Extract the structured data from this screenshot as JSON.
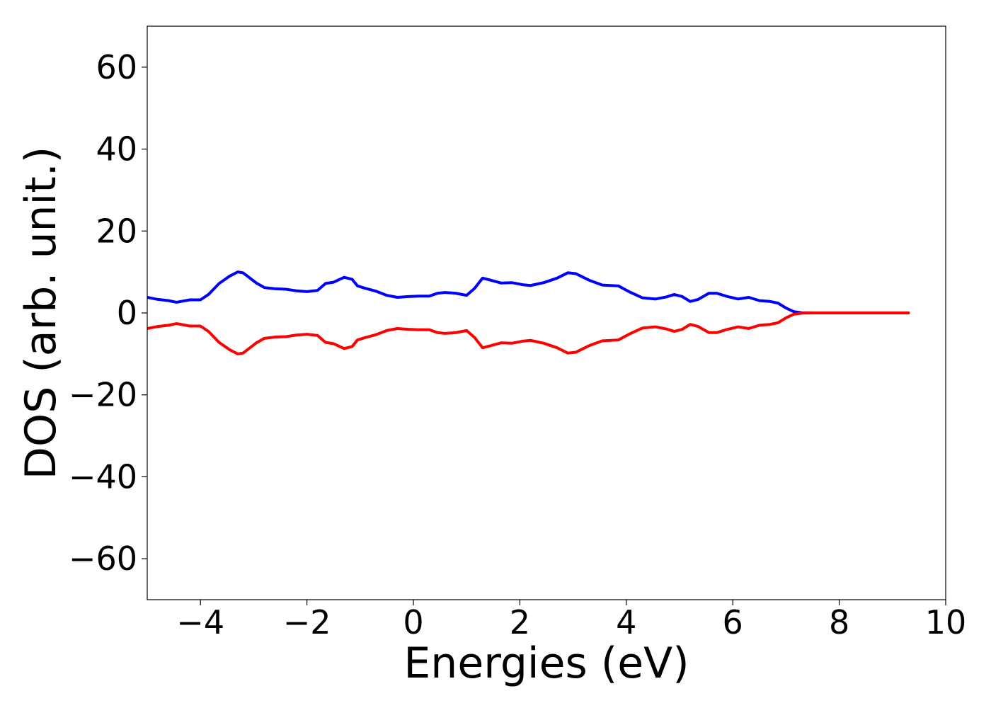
{
  "chart_data": {
    "type": "line",
    "xlabel": "Energies (eV)",
    "ylabel": "DOS (arb. unit.)",
    "xlim": [
      -5,
      10
    ],
    "ylim": [
      -70,
      70
    ],
    "xticks": [
      -4,
      -2,
      0,
      2,
      4,
      6,
      8,
      10
    ],
    "yticks": [
      -60,
      -40,
      -20,
      0,
      20,
      40,
      60
    ],
    "xtick_labels": [
      "−4",
      "−2",
      "0",
      "2",
      "4",
      "6",
      "8",
      "10"
    ],
    "ytick_labels": [
      "−60",
      "−40",
      "−20",
      "0",
      "20",
      "40",
      "60"
    ],
    "grid": false,
    "legend": "none",
    "series": [
      {
        "color": "#0000ff",
        "x": [
          -5.0,
          -4.8,
          -4.6,
          -4.45,
          -4.2,
          -4.0,
          -3.85,
          -3.65,
          -3.45,
          -3.3,
          -3.2,
          -3.1,
          -2.95,
          -2.8,
          -2.6,
          -2.4,
          -2.2,
          -2.0,
          -1.8,
          -1.65,
          -1.5,
          -1.3,
          -1.15,
          -1.05,
          -0.9,
          -0.7,
          -0.5,
          -0.3,
          -0.1,
          0.1,
          0.3,
          0.45,
          0.6,
          0.8,
          1.0,
          1.15,
          1.3,
          1.45,
          1.65,
          1.85,
          2.05,
          2.2,
          2.45,
          2.7,
          2.9,
          3.05,
          3.3,
          3.55,
          3.85,
          4.05,
          4.3,
          4.55,
          4.75,
          4.9,
          5.05,
          5.2,
          5.35,
          5.55,
          5.7,
          5.9,
          6.1,
          6.3,
          6.5,
          6.7,
          6.85,
          7.0,
          7.15,
          7.3,
          7.5,
          7.7,
          8.0,
          8.5,
          9.0,
          9.3
        ],
        "y": [
          3.8,
          3.3,
          3.0,
          2.6,
          3.2,
          3.2,
          4.5,
          7.2,
          9.0,
          10.0,
          9.8,
          8.8,
          7.3,
          6.2,
          5.9,
          5.8,
          5.4,
          5.2,
          5.5,
          7.2,
          7.5,
          8.7,
          8.2,
          6.6,
          6.0,
          5.3,
          4.3,
          3.8,
          4.0,
          4.1,
          4.1,
          4.8,
          5.0,
          4.8,
          4.3,
          6.0,
          8.5,
          8.0,
          7.3,
          7.4,
          6.9,
          6.7,
          7.4,
          8.5,
          9.8,
          9.6,
          8.0,
          6.8,
          6.6,
          5.2,
          3.7,
          3.4,
          3.9,
          4.5,
          4.0,
          2.8,
          3.3,
          4.8,
          4.8,
          4.0,
          3.4,
          3.8,
          3.0,
          2.8,
          2.4,
          1.2,
          0.3,
          0.05,
          0.0,
          0.0,
          0.0,
          0.0,
          0.0,
          0.0
        ]
      },
      {
        "color": "#ff0000",
        "x": [
          -5.0,
          -4.8,
          -4.6,
          -4.45,
          -4.2,
          -4.0,
          -3.85,
          -3.65,
          -3.45,
          -3.3,
          -3.2,
          -3.1,
          -2.95,
          -2.8,
          -2.6,
          -2.4,
          -2.2,
          -2.0,
          -1.8,
          -1.65,
          -1.5,
          -1.3,
          -1.15,
          -1.05,
          -0.9,
          -0.7,
          -0.5,
          -0.3,
          -0.1,
          0.1,
          0.3,
          0.45,
          0.6,
          0.8,
          1.0,
          1.15,
          1.3,
          1.45,
          1.65,
          1.85,
          2.05,
          2.2,
          2.45,
          2.7,
          2.9,
          3.05,
          3.3,
          3.55,
          3.85,
          4.05,
          4.3,
          4.55,
          4.75,
          4.9,
          5.05,
          5.2,
          5.35,
          5.55,
          5.7,
          5.9,
          6.1,
          6.3,
          6.5,
          6.7,
          6.85,
          7.0,
          7.15,
          7.3,
          7.5,
          7.7,
          8.0,
          8.5,
          9.0,
          9.3
        ],
        "y": [
          -3.8,
          -3.3,
          -3.0,
          -2.6,
          -3.2,
          -3.2,
          -4.5,
          -7.2,
          -9.0,
          -10.0,
          -9.8,
          -8.8,
          -7.3,
          -6.2,
          -5.9,
          -5.8,
          -5.4,
          -5.2,
          -5.5,
          -7.2,
          -7.5,
          -8.7,
          -8.2,
          -6.6,
          -6.0,
          -5.3,
          -4.3,
          -3.8,
          -4.0,
          -4.1,
          -4.1,
          -4.8,
          -5.0,
          -4.8,
          -4.3,
          -6.0,
          -8.5,
          -8.0,
          -7.3,
          -7.4,
          -6.9,
          -6.7,
          -7.4,
          -8.5,
          -9.8,
          -9.6,
          -8.0,
          -6.8,
          -6.6,
          -5.2,
          -3.7,
          -3.4,
          -3.9,
          -4.5,
          -4.0,
          -2.8,
          -3.3,
          -4.8,
          -4.8,
          -4.0,
          -3.4,
          -3.8,
          -3.0,
          -2.8,
          -2.4,
          -1.2,
          -0.3,
          -0.05,
          0.0,
          0.0,
          0.0,
          0.0,
          0.0,
          0.0
        ]
      }
    ]
  }
}
